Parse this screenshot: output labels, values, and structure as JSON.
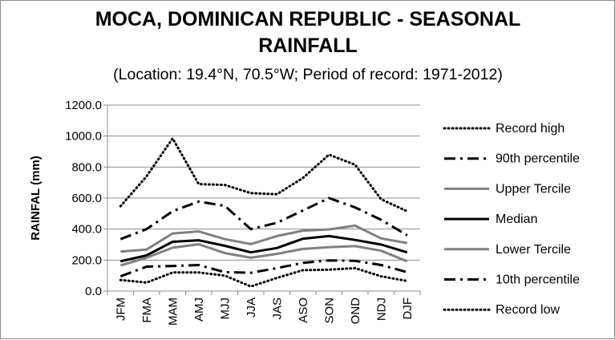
{
  "chart_data": {
    "type": "line",
    "title_line1": "MOCA, DOMINICAN REPUBLIC - SEASONAL",
    "title_line2": "RAINFALL",
    "subtitle": "(Location: 19.4°N, 70.5°W; Period of record: 1971-2012)",
    "xlabel": "",
    "ylabel": "RAINFAL (mm)",
    "ylim": [
      0,
      1200
    ],
    "yticks": [
      "0.0",
      "200.0",
      "400.0",
      "600.0",
      "800.0",
      "1000.0",
      "1200.0"
    ],
    "grid": true,
    "legend_position": "right",
    "categories": [
      "JFM",
      "FMA",
      "MAM",
      "AMJ",
      "MJJ",
      "JJA",
      "JAS",
      "ASO",
      "SON",
      "OND",
      "NDJ",
      "DJF"
    ],
    "series": [
      {
        "name": "Record high",
        "style": "dotted",
        "color": "#000000",
        "values": [
          548,
          740,
          985,
          690,
          685,
          632,
          625,
          730,
          880,
          815,
          592,
          515
        ]
      },
      {
        "name": "90th percentile",
        "style": "dashdot",
        "color": "#000000",
        "values": [
          335,
          400,
          515,
          578,
          550,
          400,
          440,
          520,
          600,
          540,
          460,
          360
        ]
      },
      {
        "name": "Upper Tercile",
        "style": "solid",
        "color": "#808080",
        "values": [
          255,
          268,
          372,
          385,
          335,
          303,
          355,
          390,
          398,
          422,
          340,
          310
        ]
      },
      {
        "name": "Median",
        "style": "solid",
        "color": "#000000",
        "values": [
          192,
          230,
          318,
          328,
          292,
          250,
          278,
          338,
          355,
          330,
          300,
          250
        ]
      },
      {
        "name": "Lower Tercile",
        "style": "solid",
        "color": "#808080",
        "values": [
          165,
          215,
          280,
          302,
          245,
          215,
          240,
          272,
          283,
          290,
          260,
          192
        ]
      },
      {
        "name": "10th percentile",
        "style": "dashdot",
        "color": "#000000",
        "values": [
          95,
          158,
          162,
          168,
          122,
          118,
          148,
          182,
          198,
          195,
          168,
          122
        ]
      },
      {
        "name": "Record low",
        "style": "dotted",
        "color": "#000000",
        "values": [
          72,
          55,
          120,
          120,
          100,
          30,
          85,
          135,
          138,
          148,
          95,
          65
        ]
      }
    ]
  }
}
